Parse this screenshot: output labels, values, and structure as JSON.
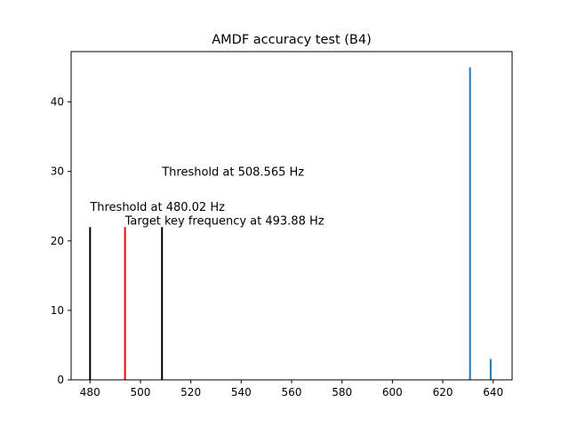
{
  "chart_data": {
    "type": "bar",
    "title": "AMDF accuracy test (B4)",
    "xlabel": "",
    "ylabel": "",
    "xlim": [
      472.5,
      647.5
    ],
    "ylim": [
      0,
      47.25
    ],
    "xticks": [
      480,
      500,
      520,
      540,
      560,
      580,
      600,
      620,
      640
    ],
    "yticks": [
      0,
      10,
      20,
      30,
      40
    ],
    "grid": false,
    "legend": "none",
    "series": [
      {
        "color": "#1f77b4",
        "points": [
          {
            "x": 630.8,
            "y": 45
          },
          {
            "x": 639.0,
            "y": 3
          }
        ]
      }
    ],
    "vlines": [
      {
        "x": 480.02,
        "y": 22,
        "color": "#000000"
      },
      {
        "x": 493.88,
        "y": 22,
        "color": "#ff0000"
      },
      {
        "x": 508.565,
        "y": 22,
        "color": "#000000"
      }
    ],
    "annotations": [
      {
        "x": 480.02,
        "y": 25,
        "text": "Threshold at 480.02 Hz"
      },
      {
        "x": 493.88,
        "y": 23,
        "text": "Target key frequency at 493.88 Hz"
      },
      {
        "x": 508.565,
        "y": 30,
        "text": "Threshold at 508.565 Hz"
      }
    ]
  }
}
